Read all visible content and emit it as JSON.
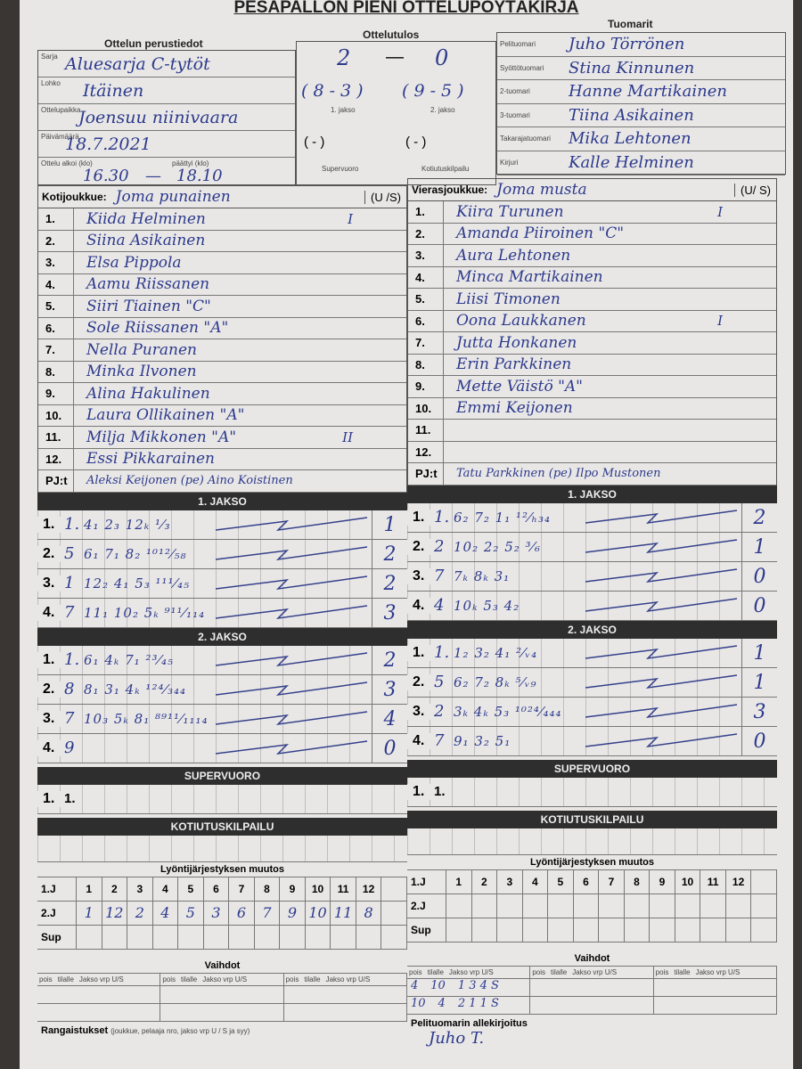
{
  "title": "PESÄPALLON PIENI OTTELUPÖYTÄKIRJA",
  "sections": {
    "basic": "Ottelun perustiedot",
    "result": "Ottelutulos",
    "referees": "Tuomarit"
  },
  "basic": {
    "sarja_label": "Sarja",
    "sarja": "Aluesarja C-tytöt",
    "lohko_label": "Lohko",
    "lohko": "Itäinen",
    "paikka_label": "Ottelupaikka",
    "paikka": "Joensuu niinivaara",
    "date_label": "Päivämäärä",
    "date": "18.7.2021",
    "start_label": "Ottelu alkoi (klo)",
    "start": "16.30",
    "end_label": "päättyi (klo)",
    "end": "18.10"
  },
  "result": {
    "home": "2",
    "away": "0",
    "p1": "( 8 - 3 )",
    "p2": "( 9 - 5 )",
    "p1_label": "1. jakso",
    "p2_label": "2. jakso",
    "super": "(   -   )",
    "koti": "(   -   )",
    "super_label": "Supervuoro",
    "koti_label": "Kotiutuskilpailu"
  },
  "referees": [
    {
      "role": "Pelituomari",
      "name": "Juho Törrönen"
    },
    {
      "role": "Syöttötuomari",
      "name": "Stina Kinnunen"
    },
    {
      "role": "2-tuomari",
      "name": "Hanne Martikainen"
    },
    {
      "role": "3-tuomari",
      "name": "Tiina Asikainen"
    },
    {
      "role": "Takarajatuomari",
      "name": "Mika Lehtonen"
    },
    {
      "role": "Kirjuri",
      "name": "Kalle Helminen"
    }
  ],
  "home": {
    "label": "Kotijoukkue:",
    "name": "Joma punainen",
    "us": "(U /S)",
    "us_selected": "S",
    "players": [
      {
        "n": "1.",
        "name": "Kiida Helminen",
        "mark": "I"
      },
      {
        "n": "2.",
        "name": "Siina Asikainen",
        "mark": ""
      },
      {
        "n": "3.",
        "name": "Elsa Pippola",
        "mark": ""
      },
      {
        "n": "4.",
        "name": "Aamu Riissanen",
        "mark": ""
      },
      {
        "n": "5.",
        "name": "Siiri Tiainen \"C\"",
        "mark": ""
      },
      {
        "n": "6.",
        "name": "Sole Riissanen \"A\"",
        "mark": ""
      },
      {
        "n": "7.",
        "name": "Nella Puranen",
        "mark": ""
      },
      {
        "n": "8.",
        "name": "Minka Ilvonen",
        "mark": ""
      },
      {
        "n": "9.",
        "name": "Alina Hakulinen",
        "mark": ""
      },
      {
        "n": "10.",
        "name": "Laura Ollikainen \"A\"",
        "mark": ""
      },
      {
        "n": "11.",
        "name": "Milja Mikkonen \"A\"",
        "mark": "II"
      },
      {
        "n": "12.",
        "name": "Essi Pikkarainen",
        "mark": ""
      }
    ],
    "pj_label": "PJ:t",
    "pj": "Aleksi Keijonen (pe) Aino Koistinen",
    "p1": [
      {
        "n": "1.",
        "fb": "1.",
        "seq": "4₁ 2₃ 12ₖ ¹⁄₃",
        "score": "1"
      },
      {
        "n": "2.",
        "fb": "5",
        "seq": "6₁ 7₁ 8₂ ¹⁰¹²⁄₅₈",
        "score": "2"
      },
      {
        "n": "3.",
        "fb": "1",
        "seq": "12₂ 4₁ 5₃ ¹¹¹⁄₄₅",
        "score": "2"
      },
      {
        "n": "4.",
        "fb": "7",
        "seq": "11₁ 10₂ 5ₖ ⁹¹¹⁄₁₁₄",
        "score": "3"
      }
    ],
    "p2": [
      {
        "n": "1.",
        "fb": "1.",
        "seq": "6₁ 4ₖ 7₁ ²³⁄₄₅",
        "score": "2"
      },
      {
        "n": "2.",
        "fb": "8",
        "seq": "8₁ 3₁ 4ₖ ¹²⁴⁄₃₄₄",
        "score": "3"
      },
      {
        "n": "3.",
        "fb": "7",
        "seq": "10₃ 5ₖ 8₁ ⁸⁹¹¹⁄₁₁₁₄",
        "score": "4"
      },
      {
        "n": "4.",
        "fb": "9",
        "seq": "",
        "score": "0"
      }
    ],
    "sup": {
      "n": "1.",
      "fb": "1."
    },
    "order_1j": [
      "1",
      "2",
      "3",
      "4",
      "5",
      "6",
      "7",
      "8",
      "9",
      "10",
      "11",
      "12"
    ],
    "order_2j": [
      "1",
      "12",
      "2",
      "4",
      "5",
      "3",
      "6",
      "7",
      "9",
      "10",
      "11",
      "8"
    ],
    "subs": []
  },
  "away": {
    "label": "Vierasjoukkue:",
    "name": "Joma musta",
    "us": "(U/ S)",
    "us_selected": "U",
    "players": [
      {
        "n": "1.",
        "name": "Kiira Turunen",
        "mark": "I"
      },
      {
        "n": "2.",
        "name": "Amanda Piiroinen \"C\"",
        "mark": ""
      },
      {
        "n": "3.",
        "name": "Aura Lehtonen",
        "mark": ""
      },
      {
        "n": "4.",
        "name": "Minca Martikainen",
        "mark": ""
      },
      {
        "n": "5.",
        "name": "Liisi Timonen",
        "mark": ""
      },
      {
        "n": "6.",
        "name": "Oona Laukkanen",
        "mark": "I"
      },
      {
        "n": "7.",
        "name": "Jutta Honkanen",
        "mark": ""
      },
      {
        "n": "8.",
        "name": "Erin Parkkinen",
        "mark": ""
      },
      {
        "n": "9.",
        "name": "Mette Väistö \"A\"",
        "mark": ""
      },
      {
        "n": "10.",
        "name": "Emmi Keijonen",
        "mark": ""
      },
      {
        "n": "11.",
        "name": "",
        "mark": ""
      },
      {
        "n": "12.",
        "name": "",
        "mark": ""
      }
    ],
    "pj_label": "PJ:t",
    "pj": "Tatu Parkkinen (pe) Ilpo Mustonen",
    "p1": [
      {
        "n": "1.",
        "fb": "1.",
        "seq": "6₂ 7₂ 1₁ ¹²⁄ₕ₃₄",
        "score": "2"
      },
      {
        "n": "2.",
        "fb": "2",
        "seq": "10₂ 2₂ 5₂ ³⁄₆",
        "score": "1"
      },
      {
        "n": "3.",
        "fb": "7",
        "seq": "7ₖ 8ₖ 3₁",
        "score": "0"
      },
      {
        "n": "4.",
        "fb": "4",
        "seq": "10ₖ 5₃ 4₂",
        "score": "0"
      }
    ],
    "p2": [
      {
        "n": "1.",
        "fb": "1.",
        "seq": "1₂ 3₂ 4₁ ²⁄ᵥ₄",
        "score": "1"
      },
      {
        "n": "2.",
        "fb": "5",
        "seq": "6₂ 7₂ 8ₖ ⁵⁄ᵥ₉",
        "score": "1"
      },
      {
        "n": "3.",
        "fb": "2",
        "seq": "3ₖ 4ₖ 5₃ ¹⁰²⁴⁄₄₄₄",
        "score": "3"
      },
      {
        "n": "4.",
        "fb": "7",
        "seq": "9₁ 3₂ 5₁",
        "score": "0"
      }
    ],
    "sup": {
      "n": "1.",
      "fb": "1."
    },
    "order_1j": [
      "1",
      "2",
      "3",
      "4",
      "5",
      "6",
      "7",
      "8",
      "9",
      "10",
      "11",
      "12"
    ],
    "order_2j": [],
    "subs": [
      {
        "pois": "4",
        "tilalle": "10",
        "info": "1 3 4 S"
      },
      {
        "pois": "10",
        "tilalle": "4",
        "info": "2 1 1 S"
      }
    ]
  },
  "labels": {
    "jakso1": "1. JAKSO",
    "jakso2": "2. JAKSO",
    "super": "SUPERVUORO",
    "koti": "KOTIUTUSKILPAILU",
    "order": "Lyöntijärjestyksen muutos",
    "j1": "1.J",
    "j2": "2.J",
    "sup": "Sup",
    "subs": "Vaihdot",
    "pois": "pois",
    "tilalle": "tilalle",
    "jvrp": "Jakso vrp U/S",
    "penalties": "Rangaistukset",
    "penalties_note": "(joukkue, pelaaja nro, jakso vrp U / S ja syy)",
    "signature": "Pelituomarin allekirjoitus",
    "signature_value": "Juho T."
  }
}
